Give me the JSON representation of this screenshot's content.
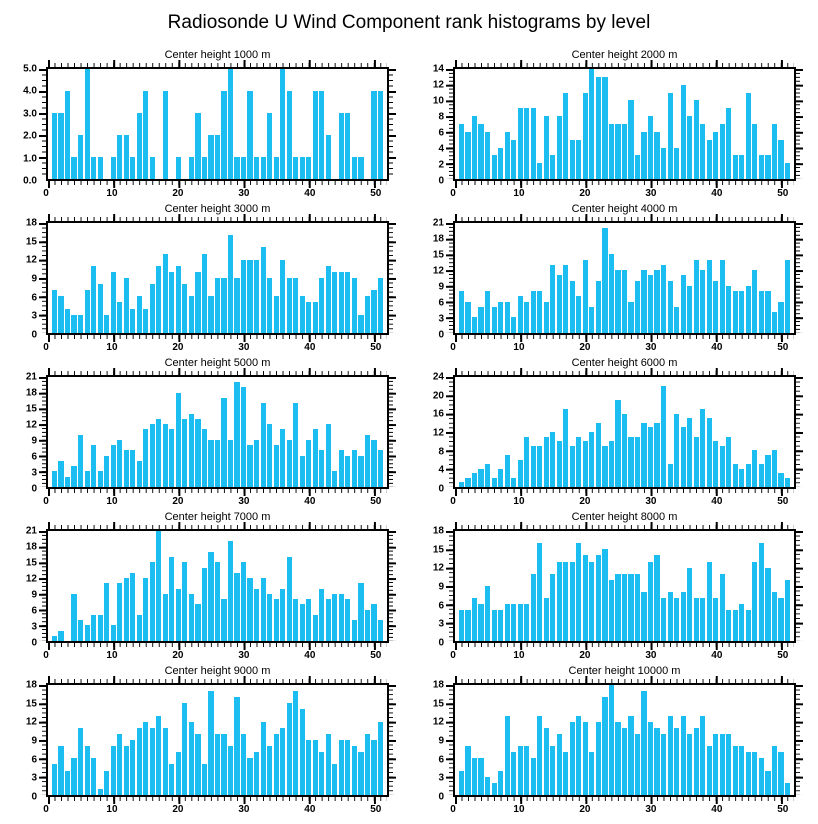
{
  "page_title": "Radiosonde U Wind Component rank histograms by level",
  "bar_color": "#1CBEF2",
  "axis_color": "#000000",
  "chart_data": [
    {
      "type": "bar",
      "title": "Center height 1000 m",
      "xlim": [
        0,
        52
      ],
      "x_ticks": [
        0,
        10,
        20,
        30,
        40,
        50
      ],
      "ylim": [
        0,
        5
      ],
      "yticks": [
        "0.0",
        "1.0",
        "2.0",
        "3.0",
        "4.0",
        "5.0"
      ],
      "x": [
        1,
        2,
        3,
        4,
        5,
        6,
        7,
        8,
        9,
        10,
        11,
        12,
        13,
        14,
        15,
        16,
        17,
        18,
        19,
        20,
        21,
        22,
        23,
        24,
        25,
        26,
        27,
        28,
        29,
        30,
        31,
        32,
        33,
        34,
        35,
        36,
        37,
        38,
        39,
        40,
        41,
        42,
        43,
        44,
        45,
        46,
        47,
        48,
        49,
        50,
        51
      ],
      "values": [
        3,
        3,
        4,
        1,
        2,
        5,
        1,
        1,
        0,
        1,
        2,
        2,
        1,
        3,
        4,
        1,
        0,
        4,
        0,
        1,
        0,
        1,
        3,
        1,
        2,
        2,
        4,
        5,
        1,
        1,
        4,
        1,
        1,
        3,
        1,
        5,
        4,
        1,
        1,
        1,
        4,
        4,
        2,
        0,
        3,
        3,
        1,
        1,
        0,
        4,
        4
      ]
    },
    {
      "type": "bar",
      "title": "Center height 2000 m",
      "xlim": [
        0,
        52
      ],
      "x_ticks": [
        0,
        10,
        20,
        30,
        40,
        50
      ],
      "ylim": [
        0,
        14
      ],
      "yticks": [
        "0",
        "2",
        "4",
        "6",
        "8",
        "10",
        "12",
        "14"
      ],
      "x": [
        1,
        2,
        3,
        4,
        5,
        6,
        7,
        8,
        9,
        10,
        11,
        12,
        13,
        14,
        15,
        16,
        17,
        18,
        19,
        20,
        21,
        22,
        23,
        24,
        25,
        26,
        27,
        28,
        29,
        30,
        31,
        32,
        33,
        34,
        35,
        36,
        37,
        38,
        39,
        40,
        41,
        42,
        43,
        44,
        45,
        46,
        47,
        48,
        49,
        50,
        51
      ],
      "values": [
        7,
        6,
        8,
        7,
        6,
        3,
        4,
        6,
        5,
        9,
        9,
        9,
        2,
        8,
        3,
        8,
        11,
        5,
        5,
        11,
        14,
        13,
        13,
        7,
        7,
        7,
        10,
        3,
        6,
        8,
        6,
        4,
        11,
        4,
        12,
        8,
        10,
        7,
        5,
        6,
        7,
        9,
        3,
        3,
        11,
        7,
        3,
        3,
        7,
        5,
        2
      ]
    },
    {
      "type": "bar",
      "title": "Center height 3000 m",
      "xlim": [
        0,
        52
      ],
      "x_ticks": [
        0,
        10,
        20,
        30,
        40,
        50
      ],
      "ylim": [
        0,
        18
      ],
      "yticks": [
        "0",
        "3",
        "6",
        "9",
        "12",
        "15",
        "18"
      ],
      "x": [
        1,
        2,
        3,
        4,
        5,
        6,
        7,
        8,
        9,
        10,
        11,
        12,
        13,
        14,
        15,
        16,
        17,
        18,
        19,
        20,
        21,
        22,
        23,
        24,
        25,
        26,
        27,
        28,
        29,
        30,
        31,
        32,
        33,
        34,
        35,
        36,
        37,
        38,
        39,
        40,
        41,
        42,
        43,
        44,
        45,
        46,
        47,
        48,
        49,
        50,
        51
      ],
      "values": [
        7,
        6,
        4,
        3,
        3,
        7,
        11,
        8,
        3,
        10,
        5,
        9,
        4,
        6,
        4,
        8,
        11,
        13,
        10,
        11,
        8,
        6,
        10,
        13,
        6,
        9,
        9,
        16,
        9,
        12,
        12,
        12,
        14,
        9,
        6,
        12,
        9,
        9,
        6,
        5,
        5,
        9,
        11,
        10,
        10,
        10,
        9,
        3,
        6,
        7,
        9
      ]
    },
    {
      "type": "bar",
      "title": "Center height 4000 m",
      "xlim": [
        0,
        52
      ],
      "x_ticks": [
        0,
        10,
        20,
        30,
        40,
        50
      ],
      "ylim": [
        0,
        21
      ],
      "yticks": [
        "0",
        "3",
        "6",
        "9",
        "12",
        "15",
        "18",
        "21"
      ],
      "x": [
        1,
        2,
        3,
        4,
        5,
        6,
        7,
        8,
        9,
        10,
        11,
        12,
        13,
        14,
        15,
        16,
        17,
        18,
        19,
        20,
        21,
        22,
        23,
        24,
        25,
        26,
        27,
        28,
        29,
        30,
        31,
        32,
        33,
        34,
        35,
        36,
        37,
        38,
        39,
        40,
        41,
        42,
        43,
        44,
        45,
        46,
        47,
        48,
        49,
        50,
        51
      ],
      "values": [
        8,
        6,
        3,
        5,
        8,
        5,
        6,
        6,
        3,
        7,
        6,
        8,
        8,
        6,
        13,
        11,
        13,
        10,
        7,
        14,
        5,
        10,
        20,
        15,
        12,
        12,
        6,
        10,
        12,
        11,
        12,
        13,
        10,
        5,
        11,
        9,
        14,
        12,
        14,
        10,
        14,
        9,
        8,
        8,
        9,
        12,
        8,
        8,
        4,
        6,
        14
      ]
    },
    {
      "type": "bar",
      "title": "Center height 5000 m",
      "xlim": [
        0,
        52
      ],
      "x_ticks": [
        0,
        10,
        20,
        30,
        40,
        50
      ],
      "ylim": [
        0,
        21
      ],
      "yticks": [
        "0",
        "3",
        "6",
        "9",
        "12",
        "15",
        "18",
        "21"
      ],
      "x": [
        1,
        2,
        3,
        4,
        5,
        6,
        7,
        8,
        9,
        10,
        11,
        12,
        13,
        14,
        15,
        16,
        17,
        18,
        19,
        20,
        21,
        22,
        23,
        24,
        25,
        26,
        27,
        28,
        29,
        30,
        31,
        32,
        33,
        34,
        35,
        36,
        37,
        38,
        39,
        40,
        41,
        42,
        43,
        44,
        45,
        46,
        47,
        48,
        49,
        50,
        51
      ],
      "values": [
        3,
        5,
        2,
        4,
        10,
        3,
        8,
        3,
        6,
        8,
        9,
        7,
        7,
        5,
        11,
        12,
        13,
        12,
        11,
        18,
        13,
        14,
        13,
        11,
        9,
        9,
        17,
        9,
        20,
        19,
        8,
        9,
        16,
        12,
        8,
        11,
        9,
        16,
        6,
        9,
        11,
        7,
        12,
        3,
        7,
        6,
        7,
        6,
        10,
        9,
        7
      ]
    },
    {
      "type": "bar",
      "title": "Center height 6000 m",
      "xlim": [
        0,
        52
      ],
      "x_ticks": [
        0,
        10,
        20,
        30,
        40,
        50
      ],
      "ylim": [
        0,
        24
      ],
      "yticks": [
        "0",
        "4",
        "8",
        "12",
        "16",
        "20",
        "24"
      ],
      "x": [
        1,
        2,
        3,
        4,
        5,
        6,
        7,
        8,
        9,
        10,
        11,
        12,
        13,
        14,
        15,
        16,
        17,
        18,
        19,
        20,
        21,
        22,
        23,
        24,
        25,
        26,
        27,
        28,
        29,
        30,
        31,
        32,
        33,
        34,
        35,
        36,
        37,
        38,
        39,
        40,
        41,
        42,
        43,
        44,
        45,
        46,
        47,
        48,
        49,
        50,
        51
      ],
      "values": [
        1,
        2,
        3,
        4,
        5,
        2,
        4,
        7,
        2,
        6,
        11,
        9,
        9,
        11,
        12,
        10,
        17,
        9,
        11,
        10,
        12,
        14,
        9,
        10,
        19,
        16,
        11,
        11,
        14,
        13,
        14,
        22,
        5,
        16,
        13,
        15,
        11,
        17,
        15,
        10,
        9,
        11,
        5,
        4,
        5,
        8,
        5,
        7,
        8,
        3,
        2
      ]
    },
    {
      "type": "bar",
      "title": "Center height 7000 m",
      "xlim": [
        0,
        52
      ],
      "x_ticks": [
        0,
        10,
        20,
        30,
        40,
        50
      ],
      "ylim": [
        0,
        21
      ],
      "yticks": [
        "0",
        "3",
        "6",
        "9",
        "12",
        "15",
        "18",
        "21"
      ],
      "x": [
        1,
        2,
        3,
        4,
        5,
        6,
        7,
        8,
        9,
        10,
        11,
        12,
        13,
        14,
        15,
        16,
        17,
        18,
        19,
        20,
        21,
        22,
        23,
        24,
        25,
        26,
        27,
        28,
        29,
        30,
        31,
        32,
        33,
        34,
        35,
        36,
        37,
        38,
        39,
        40,
        41,
        42,
        43,
        44,
        45,
        46,
        47,
        48,
        49,
        50,
        51
      ],
      "values": [
        1,
        2,
        0,
        9,
        4,
        3,
        5,
        5,
        11,
        3,
        11,
        12,
        13,
        5,
        12,
        15,
        21,
        9,
        16,
        10,
        15,
        9,
        7,
        14,
        17,
        15,
        8,
        19,
        13,
        15,
        12,
        10,
        12,
        9,
        8,
        10,
        16,
        8,
        7,
        8,
        5,
        10,
        8,
        9,
        9,
        8,
        4,
        11,
        6,
        7,
        4
      ]
    },
    {
      "type": "bar",
      "title": "Center height 8000 m",
      "xlim": [
        0,
        52
      ],
      "x_ticks": [
        0,
        10,
        20,
        30,
        40,
        50
      ],
      "ylim": [
        0,
        18
      ],
      "yticks": [
        "0",
        "3",
        "6",
        "9",
        "12",
        "15",
        "18"
      ],
      "x": [
        1,
        2,
        3,
        4,
        5,
        6,
        7,
        8,
        9,
        10,
        11,
        12,
        13,
        14,
        15,
        16,
        17,
        18,
        19,
        20,
        21,
        22,
        23,
        24,
        25,
        26,
        27,
        28,
        29,
        30,
        31,
        32,
        33,
        34,
        35,
        36,
        37,
        38,
        39,
        40,
        41,
        42,
        43,
        44,
        45,
        46,
        47,
        48,
        49,
        50,
        51
      ],
      "values": [
        5,
        5,
        7,
        6,
        9,
        5,
        5,
        6,
        6,
        6,
        6,
        11,
        16,
        7,
        11,
        13,
        13,
        13,
        16,
        14,
        13,
        14,
        15,
        10,
        11,
        11,
        11,
        11,
        8,
        13,
        14,
        7,
        8,
        7,
        8,
        12,
        7,
        7,
        13,
        7,
        11,
        5,
        5,
        6,
        5,
        13,
        16,
        12,
        8,
        7,
        10
      ]
    },
    {
      "type": "bar",
      "title": "Center height 9000 m",
      "xlim": [
        0,
        52
      ],
      "x_ticks": [
        0,
        10,
        20,
        30,
        40,
        50
      ],
      "ylim": [
        0,
        18
      ],
      "yticks": [
        "0",
        "3",
        "6",
        "9",
        "12",
        "15",
        "18"
      ],
      "x": [
        1,
        2,
        3,
        4,
        5,
        6,
        7,
        8,
        9,
        10,
        11,
        12,
        13,
        14,
        15,
        16,
        17,
        18,
        19,
        20,
        21,
        22,
        23,
        24,
        25,
        26,
        27,
        28,
        29,
        30,
        31,
        32,
        33,
        34,
        35,
        36,
        37,
        38,
        39,
        40,
        41,
        42,
        43,
        44,
        45,
        46,
        47,
        48,
        49,
        50,
        51
      ],
      "values": [
        5,
        8,
        4,
        6,
        11,
        8,
        6,
        1,
        4,
        8,
        10,
        8,
        9,
        11,
        12,
        11,
        13,
        11,
        5,
        7,
        15,
        12,
        10,
        5,
        17,
        10,
        10,
        8,
        16,
        10,
        6,
        7,
        12,
        8,
        10,
        11,
        15,
        17,
        14,
        9,
        9,
        7,
        10,
        5,
        9,
        9,
        8,
        7,
        10,
        9,
        12
      ]
    },
    {
      "type": "bar",
      "title": "Center height 10000 m",
      "xlim": [
        0,
        52
      ],
      "x_ticks": [
        0,
        10,
        20,
        30,
        40,
        50
      ],
      "ylim": [
        0,
        18
      ],
      "yticks": [
        "0",
        "3",
        "6",
        "9",
        "12",
        "15",
        "18"
      ],
      "x": [
        1,
        2,
        3,
        4,
        5,
        6,
        7,
        8,
        9,
        10,
        11,
        12,
        13,
        14,
        15,
        16,
        17,
        18,
        19,
        20,
        21,
        22,
        23,
        24,
        25,
        26,
        27,
        28,
        29,
        30,
        31,
        32,
        33,
        34,
        35,
        36,
        37,
        38,
        39,
        40,
        41,
        42,
        43,
        44,
        45,
        46,
        47,
        48,
        49,
        50,
        51
      ],
      "values": [
        4,
        8,
        6,
        6,
        3,
        2,
        4,
        13,
        7,
        8,
        8,
        6,
        13,
        11,
        8,
        10,
        7,
        12,
        13,
        12,
        7,
        12,
        16,
        18,
        12,
        11,
        13,
        10,
        17,
        12,
        11,
        10,
        13,
        11,
        13,
        10,
        11,
        13,
        8,
        10,
        10,
        10,
        8,
        8,
        7,
        7,
        6,
        4,
        8,
        7,
        2
      ]
    }
  ]
}
